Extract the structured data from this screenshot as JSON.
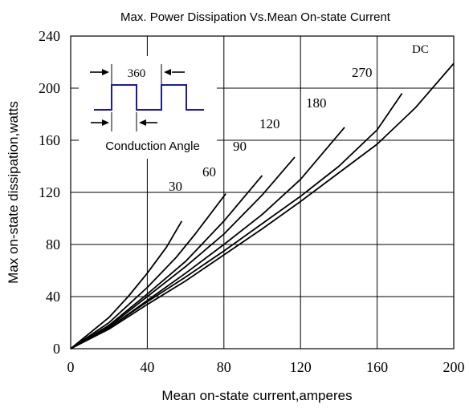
{
  "chart_data": {
    "type": "line",
    "title": "Max. Power Dissipation Vs.Mean On-state Current",
    "xlabel": "Mean on-state current,amperes",
    "ylabel": "Max on-state dissipation,watts",
    "xlim": [
      0,
      200
    ],
    "ylim": [
      0,
      240
    ],
    "x_ticks": [
      "0",
      "40",
      "80",
      "120",
      "160",
      "200"
    ],
    "y_ticks": [
      "0",
      "40",
      "80",
      "120",
      "160",
      "200",
      "240"
    ],
    "grid": true,
    "series": [
      {
        "name": "30",
        "x": [
          0,
          20,
          30,
          40,
          50,
          58
        ],
        "y": [
          0,
          24,
          40,
          58,
          78,
          98
        ]
      },
      {
        "name": "60",
        "x": [
          0,
          20,
          40,
          55,
          65,
          81
        ],
        "y": [
          0,
          20,
          47,
          70,
          88,
          119
        ]
      },
      {
        "name": "90",
        "x": [
          0,
          20,
          40,
          60,
          80,
          100
        ],
        "y": [
          0,
          18,
          42,
          67,
          98,
          133
        ]
      },
      {
        "name": "120",
        "x": [
          0,
          20,
          40,
          60,
          80,
          100,
          117
        ],
        "y": [
          0,
          17,
          40,
          63,
          88,
          118,
          147
        ]
      },
      {
        "name": "180",
        "x": [
          0,
          20,
          40,
          60,
          80,
          100,
          120,
          143
        ],
        "y": [
          0,
          16,
          37,
          58,
          80,
          103,
          130,
          170
        ]
      },
      {
        "name": "270",
        "x": [
          0,
          20,
          40,
          60,
          80,
          100,
          120,
          140,
          160,
          173
        ],
        "y": [
          0,
          16,
          36,
          55,
          75,
          96,
          117,
          140,
          168,
          196
        ]
      },
      {
        "name": "DC",
        "x": [
          0,
          20,
          40,
          60,
          80,
          100,
          120,
          140,
          160,
          180,
          200
        ],
        "y": [
          0,
          15,
          34,
          52,
          72,
          92,
          113,
          135,
          157,
          185,
          219
        ]
      }
    ],
    "inset": {
      "period_label": "360",
      "caption": "Conduction Angle"
    }
  }
}
